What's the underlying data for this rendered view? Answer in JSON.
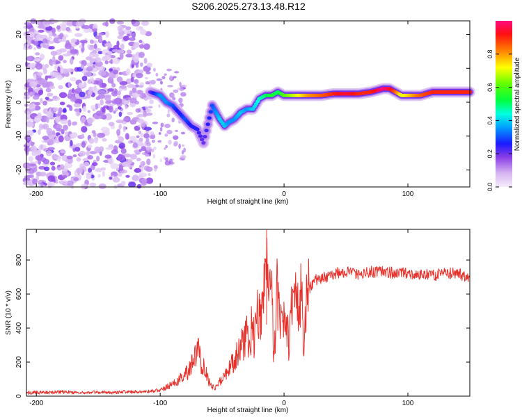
{
  "title": "S206.2025.273.13.48.R12",
  "chart_data": [
    {
      "type": "heatmap",
      "title": "S206.2025.273.13.48.R12",
      "xlabel": "Height of straight line (km)",
      "ylabel": "Frequency (Hz)",
      "xlim": [
        -208,
        150
      ],
      "ylim": [
        -25,
        24
      ],
      "xticks": [
        -200,
        -100,
        0,
        100
      ],
      "yticks": [
        -20,
        -10,
        0,
        10,
        20
      ],
      "colorbar": {
        "label": "Normalized spectral amplitude",
        "range": [
          0,
          1
        ],
        "ticks": [
          "0.0",
          "0.2",
          "0.4",
          "0.6",
          "0.8"
        ],
        "tick_values": [
          0.0,
          0.2,
          0.4,
          0.6,
          0.8
        ]
      },
      "ridge": {
        "description_series": "Estimated dominant-frequency ridge (km, Hz, amplitude)",
        "points": [
          [
            -108,
            3,
            0.2
          ],
          [
            -100,
            2,
            0.35
          ],
          [
            -95,
            0,
            0.35
          ],
          [
            -90,
            -1,
            0.3
          ],
          [
            -85,
            -3,
            0.25
          ],
          [
            -80,
            -5,
            0.3
          ],
          [
            -75,
            -7,
            0.25
          ],
          [
            -70,
            -8,
            0.25
          ],
          [
            -65,
            -12,
            0.2
          ],
          [
            -58,
            -1,
            0.3
          ],
          [
            -55,
            -3,
            0.35
          ],
          [
            -52,
            -5,
            0.4
          ],
          [
            -48,
            -7,
            0.4
          ],
          [
            -45,
            -6,
            0.35
          ],
          [
            -40,
            -5,
            0.35
          ],
          [
            -35,
            -3,
            0.4
          ],
          [
            -30,
            -2,
            0.35
          ],
          [
            -25,
            -2,
            0.4
          ],
          [
            -20,
            1,
            0.45
          ],
          [
            -15,
            2,
            0.5
          ],
          [
            -10,
            2,
            0.55
          ],
          [
            -5,
            3,
            0.5
          ],
          [
            0,
            2,
            0.6
          ],
          [
            5,
            2,
            0.65
          ],
          [
            10,
            2,
            0.7
          ],
          [
            15,
            2,
            0.75
          ],
          [
            20,
            2,
            0.8
          ],
          [
            30,
            2,
            0.85
          ],
          [
            40,
            2.5,
            0.9
          ],
          [
            50,
            2.5,
            0.95
          ],
          [
            60,
            2.5,
            0.9
          ],
          [
            70,
            3,
            0.9
          ],
          [
            80,
            4,
            1.0
          ],
          [
            85,
            4,
            0.95
          ],
          [
            90,
            3,
            0.85
          ],
          [
            95,
            2,
            0.7
          ],
          [
            100,
            2,
            0.75
          ],
          [
            105,
            2,
            0.8
          ],
          [
            110,
            2,
            0.85
          ],
          [
            120,
            3,
            0.9
          ],
          [
            130,
            3,
            0.9
          ],
          [
            140,
            3,
            0.9
          ],
          [
            150,
            3,
            0.9
          ]
        ]
      }
    },
    {
      "type": "line",
      "xlabel": "Height of straight line (km)",
      "ylabel": "SNR (10 * v/v)",
      "xlim": [
        -208,
        150
      ],
      "ylim": [
        0,
        980
      ],
      "xticks": [
        -200,
        -100,
        0,
        100
      ],
      "yticks": [
        0,
        200,
        400,
        600,
        800
      ],
      "color": "#e8302a",
      "series": [
        {
          "name": "SNR",
          "x": [
            -208,
            -200,
            -190,
            -180,
            -170,
            -160,
            -150,
            -140,
            -130,
            -120,
            -110,
            -100,
            -95,
            -90,
            -85,
            -80,
            -75,
            -72,
            -70,
            -68,
            -66,
            -64,
            -60,
            -56,
            -52,
            -48,
            -44,
            -40,
            -36,
            -32,
            -30,
            -28,
            -26,
            -24,
            -22,
            -20,
            -18,
            -16,
            -14,
            -12,
            -10,
            -8,
            -6,
            -4,
            -2,
            0,
            2,
            4,
            6,
            8,
            10,
            12,
            14,
            16,
            18,
            20,
            25,
            30,
            35,
            40,
            50,
            60,
            70,
            80,
            90,
            100,
            110,
            120,
            130,
            140,
            150
          ],
          "y": [
            20,
            22,
            20,
            25,
            22,
            20,
            24,
            22,
            25,
            25,
            28,
            35,
            50,
            70,
            90,
            130,
            170,
            220,
            290,
            230,
            180,
            160,
            70,
            50,
            80,
            110,
            160,
            220,
            280,
            320,
            380,
            270,
            420,
            330,
            480,
            520,
            460,
            590,
            980,
            540,
            620,
            180,
            610,
            560,
            450,
            440,
            470,
            300,
            520,
            480,
            580,
            430,
            620,
            250,
            600,
            630,
            680,
            690,
            700,
            720,
            730,
            720,
            730,
            735,
            720,
            720,
            720,
            710,
            720,
            720,
            700
          ]
        }
      ]
    }
  ]
}
